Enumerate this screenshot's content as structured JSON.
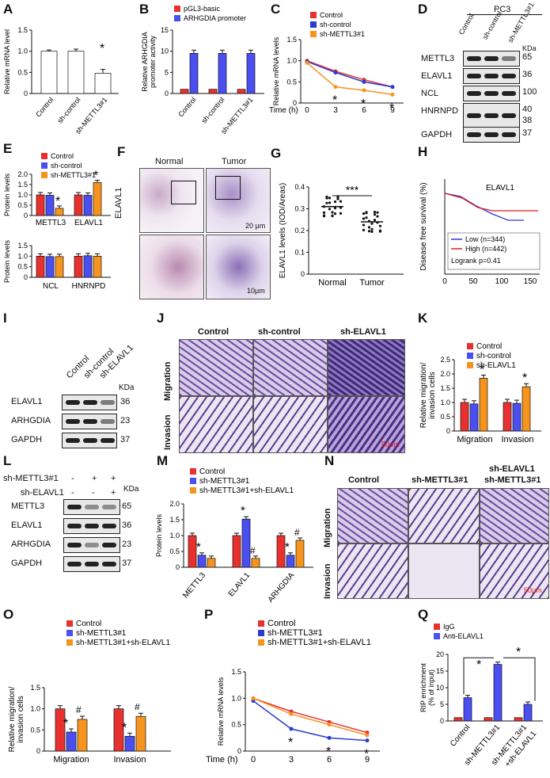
{
  "panel_letters": [
    "A",
    "B",
    "C",
    "D",
    "E",
    "F",
    "G",
    "H",
    "I",
    "J",
    "K",
    "L",
    "M",
    "N",
    "O",
    "P",
    "Q"
  ],
  "colors": {
    "control": "#e8312f",
    "sh": "#4b4ef0",
    "sh_treat": "#f7941d",
    "bar_white": "#ffffff",
    "black": "#111111",
    "line_blue": "#2b3bd1",
    "line_red": "#e31a1c"
  },
  "chart_data": [
    {
      "panel": "A",
      "type": "bar",
      "ylabel": "Relative mRNA  level",
      "ylim": [
        0,
        1.5
      ],
      "yticks": [
        "0",
        "0.5",
        "1.0",
        "1.5"
      ],
      "categories": [
        "Control",
        "sh-control",
        "sh-METTL3#1"
      ],
      "values": [
        1.0,
        1.0,
        0.48
      ],
      "errors": [
        0.03,
        0.05,
        0.09
      ],
      "significance": [
        "",
        "",
        "*"
      ]
    },
    {
      "panel": "B",
      "type": "bar",
      "ylabel": "Relative ARHGDIA promoter activity",
      "ylim": [
        0,
        15
      ],
      "yticks": [
        "0",
        "5",
        "10",
        "15"
      ],
      "categories": [
        "Control",
        "sh-control",
        "sh-METTL3#1"
      ],
      "series": [
        {
          "name": "pGL3-basic",
          "values": [
            1.0,
            1.0,
            1.0
          ]
        },
        {
          "name": "ARHGDIA promoter",
          "values": [
            9.5,
            9.5,
            9.5
          ]
        }
      ]
    },
    {
      "panel": "C",
      "type": "line",
      "ylabel": "Relative mRNA levels",
      "xlabel": "Time (h)",
      "x": [
        0,
        3,
        6,
        9
      ],
      "ylim": [
        0,
        1.5
      ],
      "yticks": [
        "0",
        "0.5",
        "1.0",
        "1.5"
      ],
      "series": [
        {
          "name": "Control",
          "values": [
            1.0,
            0.75,
            0.55,
            0.38
          ]
        },
        {
          "name": "sh-control",
          "values": [
            0.98,
            0.72,
            0.5,
            0.38
          ]
        },
        {
          "name": "sh-METTL3#1",
          "values": [
            0.95,
            0.38,
            0.3,
            0.2
          ]
        }
      ],
      "significance": [
        "",
        "*",
        "*",
        "*"
      ]
    },
    {
      "panel": "E",
      "type": "bar",
      "ylabel": "Protein levels",
      "ylim": [
        0,
        2.0
      ],
      "yticks": [
        "0",
        "0.5",
        "1.0",
        "1.5",
        "2.0"
      ],
      "categories": [
        "METTL3",
        "ELAVL1"
      ],
      "series": [
        {
          "name": "Control",
          "values": [
            1.0,
            1.0
          ]
        },
        {
          "name": "sh-control",
          "values": [
            0.98,
            0.98
          ]
        },
        {
          "name": "sh-METTL3#1",
          "values": [
            0.35,
            1.6
          ]
        }
      ],
      "significance": [
        "*",
        "*"
      ]
    },
    {
      "panel": "E2",
      "type": "bar",
      "ylabel": "Protein levels",
      "ylim": [
        0,
        1.5
      ],
      "yticks": [
        "0",
        "0.5",
        "1.0",
        "1.5"
      ],
      "categories": [
        "NCL",
        "HNRNPD"
      ],
      "series": [
        {
          "name": "Control",
          "values": [
            1.0,
            1.0
          ]
        },
        {
          "name": "sh-control",
          "values": [
            0.98,
            1.02
          ]
        },
        {
          "name": "sh-METTL3#1",
          "values": [
            0.98,
            1.0
          ]
        }
      ]
    },
    {
      "panel": "G",
      "type": "scatter",
      "ylabel": "ELAVL1 levels (IOD/Areas)",
      "ylim": [
        0,
        0.4
      ],
      "yticks": [
        "0",
        "0.1",
        "0.2",
        "0.3",
        "0.4"
      ],
      "categories": [
        "Normal",
        "Tumor"
      ],
      "means": [
        0.31,
        0.24
      ],
      "significance": "***"
    },
    {
      "panel": "H",
      "type": "line",
      "title": "ELAVL1",
      "ylabel": "Disease free survival (%)",
      "xlim": [
        0,
        150
      ],
      "xticks": [
        "0",
        "50",
        "100",
        "150"
      ],
      "series": [
        {
          "name": "Low (n=344)"
        },
        {
          "name": "High (n=442)"
        }
      ],
      "annotation": "Logrank p=0.41"
    },
    {
      "panel": "K",
      "type": "bar",
      "ylabel": "Relative migration/ invasion cells",
      "ylim": [
        0,
        2.5
      ],
      "yticks": [
        "0",
        "0.5",
        "1.0",
        "1.5",
        "2.0",
        "2.5"
      ],
      "categories": [
        "Migration",
        "Invasion"
      ],
      "series": [
        {
          "name": "Control",
          "values": [
            1.0,
            1.0
          ]
        },
        {
          "name": "sh-control",
          "values": [
            0.95,
            0.97
          ]
        },
        {
          "name": "sh-ELAVL1",
          "values": [
            1.85,
            1.55
          ]
        }
      ],
      "significance": [
        "*",
        "*"
      ]
    },
    {
      "panel": "M",
      "type": "bar",
      "ylabel": "Protein levels",
      "ylim": [
        0,
        2.0
      ],
      "yticks": [
        "0",
        "0.5",
        "1.0",
        "1.5",
        "2.0"
      ],
      "categories": [
        "METTL3",
        "ELAVL1",
        "ARHGDIA"
      ],
      "series": [
        {
          "name": "Control",
          "values": [
            1.0,
            1.0,
            1.0
          ]
        },
        {
          "name": "sh-METTL3#1",
          "values": [
            0.38,
            1.52,
            0.38
          ]
        },
        {
          "name": "sh-METTL3#1+sh-ELAVL1",
          "values": [
            0.28,
            0.28,
            0.85
          ]
        }
      ],
      "significance": [
        "*",
        "*#",
        "*#"
      ]
    },
    {
      "panel": "O",
      "type": "bar",
      "ylabel": "Relative migration/ invasion cells",
      "ylim": [
        0,
        1.5
      ],
      "yticks": [
        "0",
        "0.5",
        "1.0",
        "1.5"
      ],
      "categories": [
        "Migration",
        "Invasion"
      ],
      "series": [
        {
          "name": "Control",
          "values": [
            1.0,
            1.0
          ]
        },
        {
          "name": "sh-METTL3#1",
          "values": [
            0.45,
            0.35
          ]
        },
        {
          "name": "sh-METTL3#1+sh-ELAVL1",
          "values": [
            0.75,
            0.82
          ]
        }
      ],
      "significance": [
        "*#",
        "*#"
      ]
    },
    {
      "panel": "P",
      "type": "line",
      "ylabel": "Relative mRNA levels",
      "xlabel": "Time (h)",
      "x": [
        0,
        3,
        6,
        9
      ],
      "ylim": [
        0,
        1.5
      ],
      "yticks": [
        "0",
        "0.5",
        "1.0",
        "1.5"
      ],
      "series": [
        {
          "name": "Control",
          "values": [
            1.0,
            0.75,
            0.55,
            0.35
          ]
        },
        {
          "name": "sh-METTL3#1",
          "values": [
            0.95,
            0.42,
            0.25,
            0.2
          ]
        },
        {
          "name": "sh-METTL3#1+sh-ELAVL1",
          "values": [
            1.0,
            0.7,
            0.5,
            0.3
          ]
        }
      ],
      "significance": [
        "",
        "*",
        "*",
        "*"
      ]
    },
    {
      "panel": "Q",
      "type": "bar",
      "ylabel": "RIP enrichment (% of input)",
      "ylim": [
        0,
        20
      ],
      "yticks": [
        "0",
        "5",
        "10",
        "15",
        "20"
      ],
      "categories": [
        "Control",
        "sh-METTL3#1",
        "sh-METTL3#1 +sh-ELAVL1"
      ],
      "series": [
        {
          "name": "IgG",
          "values": [
            1.0,
            1.0,
            1.0
          ]
        },
        {
          "name": "Anti-ELAVL1",
          "values": [
            7.0,
            17.0,
            5.0
          ]
        }
      ]
    }
  ],
  "A": {
    "xlabels": [
      "Control",
      "sh-control",
      "sh-METTL3#1"
    ],
    "sig": "*",
    "ylabel": "Relative mRNA  level"
  },
  "B": {
    "legend": [
      "pGL3-basic",
      "ARHGDIA promoter"
    ],
    "ylabel": "Relative ARHGDIA promoter activity",
    "xlabels": [
      "Control",
      "sh-control",
      "sh-METTL3#1"
    ]
  },
  "C": {
    "legend": [
      "Control",
      "sh-control",
      "sh-METTL3#1"
    ],
    "ylabel": "Relative mRNA levels",
    "xlabel": "Time (h)",
    "sig": "*"
  },
  "D": {
    "header": "PC3",
    "cols": [
      "Control",
      "sh-control",
      "sh-METTL3#1"
    ],
    "kda": "KDa",
    "rows": [
      {
        "name": "METTL3",
        "kda": "65"
      },
      {
        "name": "ELAVL1",
        "kda": "36"
      },
      {
        "name": "NCL",
        "kda": "100"
      },
      {
        "name": "HNRNPD",
        "kda": "40",
        "kda2": "38"
      },
      {
        "name": "GAPDH",
        "kda": "37"
      }
    ]
  },
  "E": {
    "legend": [
      "Control",
      "sh-control",
      "sh-METTL3#1"
    ],
    "ylabel": "Protein levels",
    "xlabels_top": [
      "METTL3",
      "ELAVL1"
    ],
    "xlabels_bottom": [
      "NCL",
      "HNRNPD"
    ],
    "sig": "*"
  },
  "F": {
    "cols": [
      "Normal",
      "Tumor"
    ],
    "row": "ELAVL1",
    "scale1": "20 μm",
    "scale2": "10μm"
  },
  "G": {
    "ylabel": "ELAVL1 levels (IOD/Areas)",
    "xlabels": [
      "Normal",
      "Tumor"
    ],
    "sig": "***"
  },
  "H": {
    "title": "ELAVL1",
    "ylabel": "Disease free survival (%)",
    "legend": [
      "Low (n=344)",
      "High (n=442)"
    ],
    "pval": "Logrank p=0.41"
  },
  "I": {
    "cols": [
      "Control",
      "sh-control",
      "sh-ELAVL1"
    ],
    "kda": "KDa",
    "rows": [
      {
        "name": "ELAVL1",
        "kda": "36"
      },
      {
        "name": "ARHGDIA",
        "kda": "23"
      },
      {
        "name": "GAPDH",
        "kda": "37"
      }
    ]
  },
  "J": {
    "cols": [
      "Control",
      "sh-control",
      "sh-ELAVL1"
    ],
    "rows": [
      "Migration",
      "Invasion"
    ],
    "scale": "50μm"
  },
  "K": {
    "legend": [
      "Control",
      "sh-control",
      "sh-ELAVL1"
    ],
    "ylabel": "Relative migration/ invasion cells",
    "xlabels": [
      "Migration",
      "Invasion"
    ],
    "sig": "*"
  },
  "L": {
    "row1": "sh-METTL3#1",
    "row2": "sh-ELAVL1",
    "signs1": [
      "-",
      "+",
      "+"
    ],
    "signs2": [
      "-",
      "-",
      "+"
    ],
    "kda": "KDa",
    "rows": [
      {
        "name": "METTL3",
        "kda": "65"
      },
      {
        "name": "ELAVL1",
        "kda": "36"
      },
      {
        "name": "ARHGDIA",
        "kda": "23"
      },
      {
        "name": "GAPDH",
        "kda": "37"
      }
    ]
  },
  "M": {
    "legend": [
      "Control",
      "sh-METTL3#1",
      "sh-METTL3#1+sh-ELAVL1"
    ],
    "ylabel": "Protein levels",
    "xlabels": [
      "METTL3",
      "ELAVL1",
      "ARHGDIA"
    ],
    "sig": "*",
    "hash": "#"
  },
  "N": {
    "cols": [
      "Control",
      "sh-METTL3#1",
      "sh-ELAVL1",
      "sh-METTL3#1"
    ],
    "rows": [
      "Migration",
      "Invasion"
    ],
    "scale": "50μm"
  },
  "O": {
    "legend": [
      "Control",
      "sh-METTL3#1",
      "sh-METTL3#1+sh-ELAVL1"
    ],
    "ylabel": "Relative migration/ invasion cells",
    "xlabels": [
      "Migration",
      "Invasion"
    ],
    "sig": "*",
    "hash": "#"
  },
  "P": {
    "legend": [
      "Control",
      "sh-METTL3#1",
      "sh-METTL3#1+sh-ELAVL1"
    ],
    "ylabel": "Relative mRNA levels",
    "xlabel": "Time (h)",
    "sig": "*"
  },
  "Q": {
    "legend": [
      "IgG",
      "Anti-ELAVL1"
    ],
    "ylabel": "RIP enrichment (% of input)",
    "xlabels": [
      "Control",
      "sh-METTL3#1",
      "sh-METTL3#1",
      "+sh-ELAVL1"
    ],
    "sig": "*"
  }
}
